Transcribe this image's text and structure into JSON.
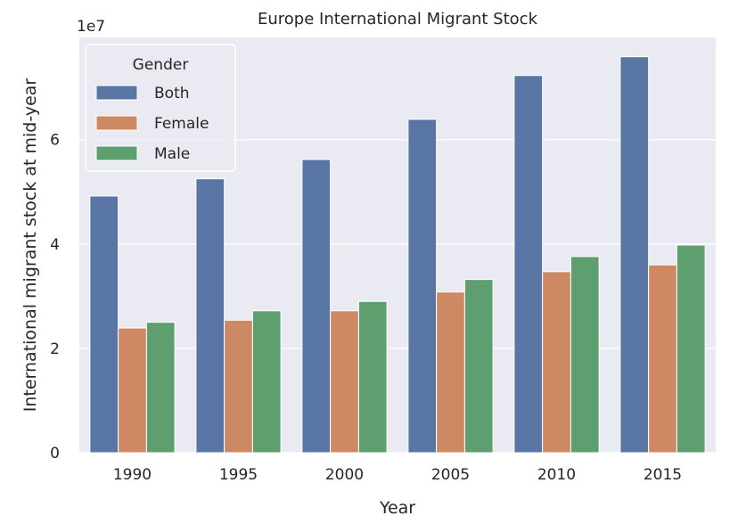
{
  "chart_data": {
    "type": "bar",
    "title": "Europe International Migrant Stock",
    "xlabel": "Year",
    "ylabel": "International migrant stock at mid-year",
    "offset_text": "1e7",
    "categories": [
      "1990",
      "1995",
      "2000",
      "2005",
      "2010",
      "2015"
    ],
    "series": [
      {
        "name": "Both",
        "color": "#5975a4",
        "values": [
          49200000,
          52500000,
          56200000,
          63900000,
          72300000,
          75900000
        ]
      },
      {
        "name": "Female",
        "color": "#cc8963",
        "values": [
          23900000,
          25400000,
          27200000,
          30800000,
          34700000,
          36000000
        ]
      },
      {
        "name": "Male",
        "color": "#5f9e6e",
        "values": [
          25000000,
          27200000,
          29000000,
          33200000,
          37600000,
          39800000
        ]
      }
    ],
    "yticks": [
      0,
      20000000,
      40000000,
      60000000
    ],
    "ytick_labels": [
      "0",
      "2",
      "4",
      "6"
    ],
    "ylim": [
      0,
      79600000
    ],
    "legend": {
      "title": "Gender",
      "position": "upper-left"
    },
    "grid": true,
    "background": "#eaeaf2"
  }
}
